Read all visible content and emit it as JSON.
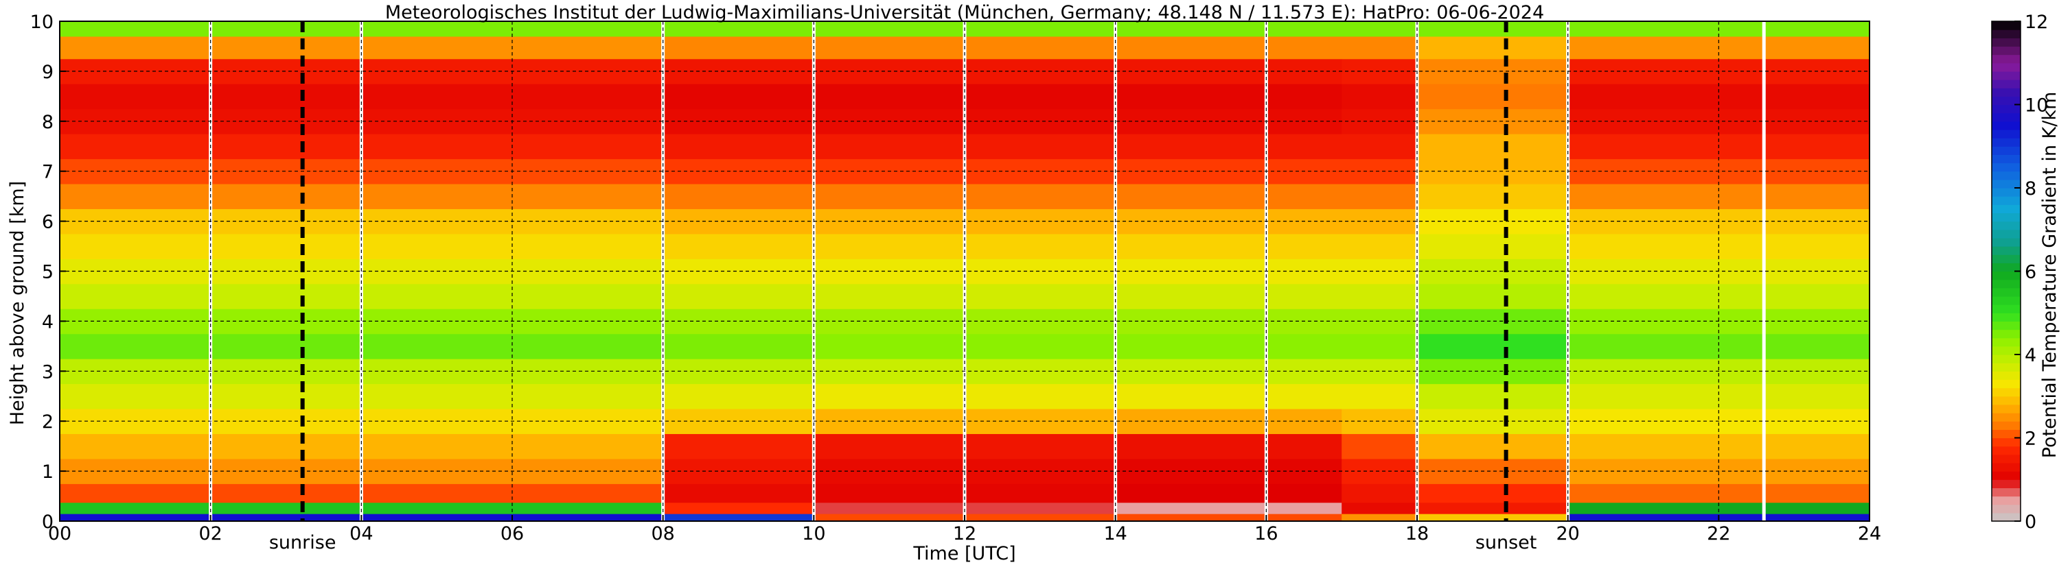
{
  "chart_data": {
    "type": "heatmap",
    "title": "Meteorologisches Institut der Ludwig-Maximilians-Universität (München, Germany; 48.148 N / 11.573 E):    HatPro: 06-06-2024",
    "xlabel": "Time [UTC]",
    "ylabel": "Height above ground [km]",
    "colorbar_label": "Potential Temperature Gradient in K/km",
    "xlim": [
      0,
      24
    ],
    "ylim": [
      0,
      10
    ],
    "clim": [
      0,
      12
    ],
    "xticks": [
      0,
      2,
      4,
      6,
      8,
      10,
      12,
      14,
      16,
      18,
      20,
      22,
      24
    ],
    "xtick_labels": [
      "00",
      "02",
      "04",
      "06",
      "08",
      "10",
      "12",
      "14",
      "16",
      "18",
      "20",
      "22",
      "24"
    ],
    "yticks": [
      0,
      1,
      2,
      3,
      4,
      5,
      6,
      7,
      8,
      9,
      10
    ],
    "ytick_labels": [
      "0",
      "1",
      "2",
      "3",
      "4",
      "5",
      "6",
      "7",
      "8",
      "9",
      "10"
    ],
    "cbar_ticks": [
      0,
      2,
      4,
      6,
      8,
      10,
      12
    ],
    "cbar_tick_labels": [
      "0",
      "2",
      "4",
      "6",
      "8",
      "10",
      "12"
    ],
    "grid": true,
    "markers": [
      {
        "label": "sunrise",
        "time": 3.22
      },
      {
        "label": "sunset",
        "time": 19.18
      }
    ],
    "data_gaps_utc": [
      2.0,
      4.0,
      8.0,
      10.0,
      12.0,
      14.0,
      16.0,
      18.0,
      20.0,
      22.6
    ],
    "height_km": [
      0.05,
      0.25,
      0.5,
      1.0,
      1.5,
      2.0,
      2.5,
      3.0,
      3.5,
      4.0,
      4.5,
      5.0,
      5.5,
      6.0,
      6.5,
      7.0,
      7.5,
      8.0,
      8.5,
      9.0,
      9.5,
      9.9
    ],
    "time_blocks": [
      {
        "start": 0,
        "end": 8,
        "gradient": [
          9.5,
          5.5,
          2.0,
          2.5,
          2.8,
          3.2,
          3.6,
          3.9,
          4.6,
          4.3,
          3.8,
          3.5,
          3.2,
          3.0,
          2.4,
          2.0,
          1.6,
          1.3,
          1.2,
          1.5,
          2.5,
          4.5
        ]
      },
      {
        "start": 8,
        "end": 10,
        "gradient": [
          9.0,
          1.8,
          1.2,
          1.4,
          1.6,
          3.0,
          3.5,
          3.9,
          4.5,
          4.2,
          3.7,
          3.4,
          3.1,
          2.8,
          2.3,
          1.9,
          1.5,
          1.2,
          1.1,
          1.4,
          2.4,
          4.5
        ]
      },
      {
        "start": 10,
        "end": 14,
        "gradient": [
          2.0,
          0.8,
          1.1,
          1.2,
          1.4,
          2.8,
          3.4,
          3.8,
          4.4,
          4.2,
          3.7,
          3.4,
          3.1,
          2.8,
          2.3,
          1.9,
          1.5,
          1.2,
          1.1,
          1.4,
          2.4,
          4.5
        ]
      },
      {
        "start": 14,
        "end": 17,
        "gradient": [
          2.0,
          0.5,
          1.0,
          1.1,
          1.3,
          2.7,
          3.4,
          3.8,
          4.4,
          4.2,
          3.7,
          3.4,
          3.1,
          2.8,
          2.3,
          1.9,
          1.5,
          1.2,
          1.1,
          1.4,
          2.4,
          4.5
        ]
      },
      {
        "start": 17,
        "end": 18,
        "gradient": [
          2.5,
          1.2,
          1.4,
          1.6,
          2.0,
          2.9,
          3.4,
          3.8,
          4.4,
          4.2,
          3.7,
          3.4,
          3.1,
          2.8,
          2.3,
          1.9,
          1.5,
          1.3,
          1.2,
          1.5,
          2.4,
          4.5
        ]
      },
      {
        "start": 18,
        "end": 20,
        "gradient": [
          3.0,
          1.5,
          1.8,
          2.2,
          2.8,
          3.5,
          3.8,
          4.5,
          5.0,
          4.6,
          4.0,
          3.8,
          3.5,
          3.3,
          3.0,
          2.8,
          2.8,
          2.5,
          2.3,
          2.4,
          2.8,
          4.5
        ]
      },
      {
        "start": 20,
        "end": 24,
        "gradient": [
          9.5,
          6.0,
          2.2,
          2.6,
          2.9,
          3.3,
          3.6,
          3.9,
          4.6,
          4.3,
          3.8,
          3.5,
          3.2,
          3.0,
          2.4,
          2.0,
          1.6,
          1.3,
          1.2,
          1.5,
          2.5,
          4.5
        ]
      }
    ],
    "colorscale": [
      {
        "v": 0,
        "color": "#c8c8c8"
      },
      {
        "v": 0.5,
        "color": "#e8a0a0"
      },
      {
        "v": 1,
        "color": "#e00000"
      },
      {
        "v": 1.8,
        "color": "#ff2a00"
      },
      {
        "v": 2.3,
        "color": "#ff7a00"
      },
      {
        "v": 2.8,
        "color": "#ffb400"
      },
      {
        "v": 3.3,
        "color": "#f6e600"
      },
      {
        "v": 3.8,
        "color": "#c8ee00"
      },
      {
        "v": 4.4,
        "color": "#8cf000"
      },
      {
        "v": 5,
        "color": "#30e020"
      },
      {
        "v": 6,
        "color": "#10a820"
      },
      {
        "v": 6.7,
        "color": "#0fa090"
      },
      {
        "v": 7.5,
        "color": "#10a8d8"
      },
      {
        "v": 8.5,
        "color": "#1060e0"
      },
      {
        "v": 9.5,
        "color": "#1010d0"
      },
      {
        "v": 10.3,
        "color": "#3a10b0"
      },
      {
        "v": 11,
        "color": "#8a1a9a"
      },
      {
        "v": 12,
        "color": "#000000"
      }
    ]
  }
}
